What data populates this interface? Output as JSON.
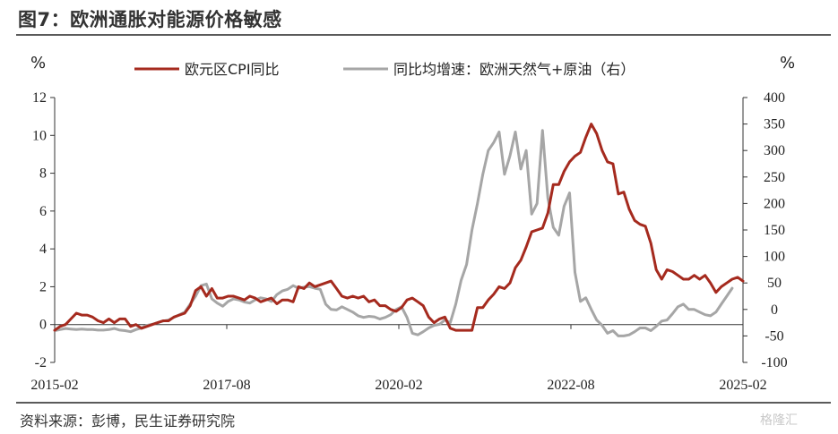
{
  "header": {
    "title": "图7：欧洲通胀对能源价格敏感"
  },
  "footer": {
    "source": "资料来源：彭博，民生证券研究院",
    "watermark": "格隆汇"
  },
  "chart_data": {
    "type": "line",
    "title": "图7：欧洲通胀对能源价格敏感",
    "x_start": "2015-02",
    "x_end": "2025-02",
    "x_ticks": [
      "2015-02",
      "2017-08",
      "2020-02",
      "2022-08",
      "2025-02"
    ],
    "y_left": {
      "label": "%",
      "range": [
        -2,
        12
      ],
      "ticks": [
        -2,
        0,
        2,
        4,
        6,
        8,
        10,
        12
      ]
    },
    "y_right": {
      "label": "%",
      "range": [
        -100,
        400
      ],
      "ticks": [
        -100,
        -50,
        0,
        50,
        100,
        150,
        200,
        250,
        300,
        350,
        400
      ]
    },
    "legend_position": "top",
    "series": [
      {
        "name": "欧元区CPI同比",
        "axis": "left",
        "color": "#a52a1e",
        "values": [
          -0.3,
          -0.1,
          0.0,
          0.3,
          0.6,
          0.5,
          0.5,
          0.4,
          0.2,
          0.1,
          0.3,
          0.1,
          0.3,
          0.3,
          -0.1,
          0.0,
          -0.2,
          -0.1,
          0.0,
          0.1,
          0.2,
          0.2,
          0.4,
          0.5,
          0.6,
          1.0,
          1.8,
          2.0,
          1.5,
          1.9,
          1.4,
          1.4,
          1.5,
          1.5,
          1.4,
          1.3,
          1.5,
          1.4,
          1.2,
          1.3,
          1.4,
          1.1,
          1.3,
          1.3,
          1.2,
          2.0,
          1.9,
          2.2,
          2.0,
          2.1,
          2.2,
          2.3,
          1.9,
          1.5,
          1.4,
          1.5,
          1.4,
          1.5,
          1.2,
          1.3,
          1.0,
          1.0,
          0.8,
          0.7,
          0.9,
          1.3,
          1.4,
          1.2,
          1.0,
          0.4,
          0.1,
          0.3,
          0.4,
          -0.2,
          -0.3,
          -0.3,
          -0.3,
          -0.3,
          0.9,
          0.9,
          1.3,
          1.6,
          2.0,
          1.9,
          2.2,
          3.0,
          3.4,
          4.1,
          4.9,
          5.0,
          5.1,
          5.9,
          7.4,
          7.4,
          8.1,
          8.6,
          8.9,
          9.1,
          9.9,
          10.6,
          10.1,
          9.2,
          8.6,
          8.5,
          6.9,
          7.0,
          6.1,
          5.5,
          5.3,
          5.2,
          4.3,
          2.9,
          2.4,
          2.9,
          2.8,
          2.6,
          2.4,
          2.4,
          2.6,
          2.4,
          2.6,
          2.2,
          1.7,
          2.0,
          2.2,
          2.4,
          2.5,
          2.3
        ]
      },
      {
        "name": "同比均增速：欧洲天然气+原油（右）",
        "axis": "right",
        "color": "#a6a6a6",
        "values": [
          -40,
          -38,
          -36,
          -37,
          -38,
          -37,
          -38,
          -38,
          -39,
          -39,
          -38,
          -36,
          -39,
          -40,
          -42,
          -38,
          -35,
          -30,
          -28,
          -25,
          -22,
          -20,
          -15,
          -10,
          -5,
          10,
          25,
          45,
          48,
          20,
          12,
          6,
          15,
          20,
          18,
          14,
          12,
          18,
          22,
          20,
          15,
          28,
          35,
          38,
          45,
          40,
          42,
          43,
          40,
          38,
          10,
          0,
          -1,
          5,
          0,
          -5,
          -12,
          -15,
          -13,
          -14,
          -18,
          -15,
          -10,
          0,
          5,
          -15,
          -45,
          -48,
          -42,
          -35,
          -30,
          -28,
          -20,
          -25,
          10,
          55,
          85,
          150,
          200,
          255,
          300,
          315,
          335,
          255,
          290,
          335,
          265,
          300,
          180,
          200,
          338,
          210,
          155,
          140,
          195,
          220,
          70,
          15,
          22,
          0,
          -20,
          -30,
          -45,
          -40,
          -50,
          -50,
          -48,
          -42,
          -35,
          -35,
          -40,
          -32,
          -22,
          -20,
          -8,
          5,
          10,
          0,
          0,
          -5,
          -10,
          -12,
          -5,
          10,
          25,
          40
        ]
      }
    ]
  }
}
